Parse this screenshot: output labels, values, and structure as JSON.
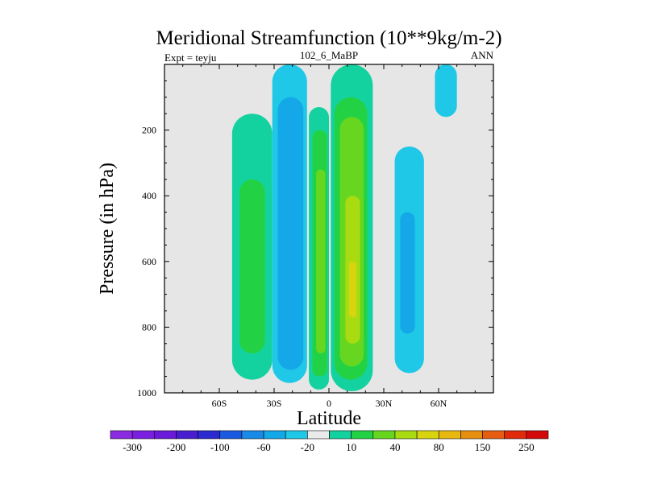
{
  "chart_data": {
    "type": "heatmap",
    "title": "Meridional Streamfunction (10**9kg/m-2)",
    "subtitle_left": "Expt = teyju",
    "subtitle_center": "102_6_MaBP",
    "subtitle_right": "ANN",
    "xlabel": "Latitude",
    "ylabel": "Pressure (in hPa)",
    "x_range": [
      -90,
      90
    ],
    "y_range": [
      0,
      1000
    ],
    "y_inverted": true,
    "x_ticks": [
      {
        "value": -60,
        "label": "60S"
      },
      {
        "value": -30,
        "label": "30S"
      },
      {
        "value": 0,
        "label": "0"
      },
      {
        "value": 30,
        "label": "30N"
      },
      {
        "value": 60,
        "label": "60N"
      }
    ],
    "y_ticks": [
      {
        "value": 200,
        "label": "200"
      },
      {
        "value": 400,
        "label": "400"
      },
      {
        "value": 600,
        "label": "600"
      },
      {
        "value": 800,
        "label": "800"
      },
      {
        "value": 1000,
        "label": "1000"
      }
    ],
    "background_color": "#e6e6e6",
    "colorbar": {
      "colors": [
        "#8a2be2",
        "#7a1fe0",
        "#6a1ad8",
        "#4a1cd0",
        "#2a2ad0",
        "#1a5ae0",
        "#1a8ae8",
        "#14a8e8",
        "#1ec8e6",
        "#eaeaea",
        "#14d2a0",
        "#22d244",
        "#66d620",
        "#a8dc10",
        "#d8d410",
        "#e6b810",
        "#e68e10",
        "#e65c10",
        "#e02a0a",
        "#d40a0a"
      ],
      "labels": [
        "-300",
        "-200",
        "-100",
        "-60",
        "-20",
        "10",
        "40",
        "80",
        "150",
        "250"
      ]
    },
    "contour_levels": [
      {
        "level": -20,
        "color": "#1ec8e6"
      },
      {
        "level": -60,
        "color": "#14a8e8"
      },
      {
        "level": 10,
        "color": "#14d2a0"
      },
      {
        "level": 40,
        "color": "#22d244"
      },
      {
        "level": 60,
        "color": "#66d620"
      },
      {
        "level": 80,
        "color": "#a8dc10"
      },
      {
        "level": 100,
        "color": "#d8d410"
      }
    ],
    "cells": [
      {
        "name": "sh-polar-positive",
        "lat_center": -42,
        "lat_halfwidth": 11,
        "p_top": 150,
        "p_bottom": 960,
        "peak": 40,
        "levels": [
          {
            "lat": [
              -53,
              -31
            ],
            "p": [
              150,
              960
            ],
            "color": "#14d2a0"
          },
          {
            "lat": [
              -49,
              -35
            ],
            "p": [
              350,
              880
            ],
            "color": "#22d244"
          }
        ]
      },
      {
        "name": "sh-ferrel-negative",
        "lat_center": -21,
        "lat_halfwidth": 10,
        "p_top": 0,
        "p_bottom": 970,
        "peak": -60,
        "levels": [
          {
            "lat": [
              -31,
              -12
            ],
            "p": [
              0,
              970
            ],
            "color": "#1ec8e6"
          },
          {
            "lat": [
              -28,
              -14
            ],
            "p": [
              100,
              930
            ],
            "color": "#14a8e8"
          }
        ]
      },
      {
        "name": "sh-hadley-positive",
        "lat_center": -5,
        "lat_halfwidth": 6,
        "p_top": 130,
        "p_bottom": 990,
        "peak": 60,
        "levels": [
          {
            "lat": [
              -11,
              0
            ],
            "p": [
              130,
              990
            ],
            "color": "#14d2a0"
          },
          {
            "lat": [
              -9,
              -1
            ],
            "p": [
              200,
              950
            ],
            "color": "#22d244"
          },
          {
            "lat": [
              -7,
              -2
            ],
            "p": [
              320,
              880
            ],
            "color": "#66d620"
          }
        ]
      },
      {
        "name": "nh-hadley-positive",
        "lat_center": 12,
        "lat_halfwidth": 12,
        "p_top": 0,
        "p_bottom": 995,
        "peak": 100,
        "levels": [
          {
            "lat": [
              1,
              24
            ],
            "p": [
              0,
              995
            ],
            "color": "#14d2a0"
          },
          {
            "lat": [
              3,
              21
            ],
            "p": [
              100,
              960
            ],
            "color": "#22d244"
          },
          {
            "lat": [
              6,
              19
            ],
            "p": [
              160,
              920
            ],
            "color": "#66d620"
          },
          {
            "lat": [
              9,
              17
            ],
            "p": [
              400,
              850
            ],
            "color": "#a8dc10"
          },
          {
            "lat": [
              11,
              15
            ],
            "p": [
              600,
              770
            ],
            "color": "#d8d410"
          }
        ]
      },
      {
        "name": "nh-ferrel-negative",
        "lat_center": 44,
        "lat_halfwidth": 8,
        "p_top": 250,
        "p_bottom": 940,
        "peak": -60,
        "levels": [
          {
            "lat": [
              36,
              52
            ],
            "p": [
              250,
              940
            ],
            "color": "#1ec8e6"
          },
          {
            "lat": [
              39,
              47
            ],
            "p": [
              450,
              820
            ],
            "color": "#14a8e8"
          }
        ]
      },
      {
        "name": "nh-strat-negative",
        "lat_center": 64,
        "lat_halfwidth": 6,
        "p_top": 0,
        "p_bottom": 160,
        "peak": -20,
        "levels": [
          {
            "lat": [
              58,
              70
            ],
            "p": [
              0,
              160
            ],
            "color": "#1ec8e6"
          }
        ]
      }
    ]
  }
}
